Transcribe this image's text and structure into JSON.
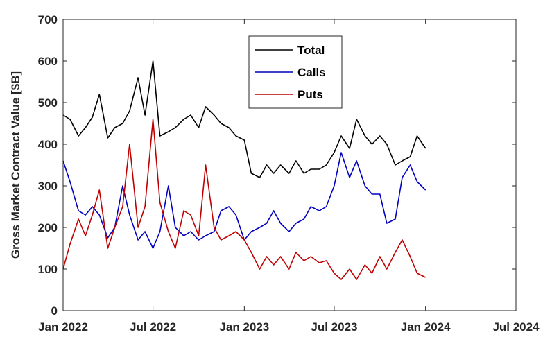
{
  "chart_data": {
    "type": "line",
    "title": "",
    "xlabel": "",
    "ylabel": "Gross Market Contract Value [$B]",
    "xlim": [
      "2022-01-01",
      "2024-07-01"
    ],
    "ylim": [
      0,
      700
    ],
    "xticks": [
      {
        "date": "2022-01-01",
        "label": "Jan 2022"
      },
      {
        "date": "2022-07-01",
        "label": "Jul 2022"
      },
      {
        "date": "2023-01-01",
        "label": "Jan 2023"
      },
      {
        "date": "2023-07-01",
        "label": "Jul 2023"
      },
      {
        "date": "2024-01-01",
        "label": "Jan 2024"
      },
      {
        "date": "2024-07-01",
        "label": "Jul 2024"
      }
    ],
    "yticks": [
      0,
      100,
      200,
      300,
      400,
      500,
      600,
      700
    ],
    "grid": false,
    "legend_position": "top-center",
    "x": [
      "2022-01-01",
      "2022-01-15",
      "2022-02-01",
      "2022-02-15",
      "2022-03-01",
      "2022-03-15",
      "2022-04-01",
      "2022-04-15",
      "2022-05-01",
      "2022-05-15",
      "2022-06-01",
      "2022-06-15",
      "2022-07-01",
      "2022-07-15",
      "2022-08-01",
      "2022-08-15",
      "2022-09-01",
      "2022-09-15",
      "2022-10-01",
      "2022-10-15",
      "2022-11-01",
      "2022-11-15",
      "2022-12-01",
      "2022-12-15",
      "2023-01-01",
      "2023-01-15",
      "2023-02-01",
      "2023-02-15",
      "2023-03-01",
      "2023-03-15",
      "2023-04-01",
      "2023-04-15",
      "2023-05-01",
      "2023-05-15",
      "2023-06-01",
      "2023-06-15",
      "2023-07-01",
      "2023-07-15",
      "2023-08-01",
      "2023-08-15",
      "2023-09-01",
      "2023-09-15",
      "2023-10-01",
      "2023-10-15",
      "2023-11-01",
      "2023-11-15",
      "2023-12-01",
      "2023-12-15",
      "2024-01-01"
    ],
    "series": [
      {
        "name": "Total",
        "color": "#000000",
        "values": [
          470,
          460,
          420,
          440,
          465,
          520,
          415,
          440,
          450,
          480,
          560,
          470,
          600,
          420,
          430,
          440,
          460,
          470,
          440,
          490,
          470,
          450,
          440,
          420,
          410,
          330,
          320,
          350,
          330,
          350,
          330,
          360,
          330,
          340,
          340,
          350,
          380,
          420,
          390,
          460,
          420,
          400,
          420,
          400,
          350,
          360,
          370,
          420,
          390
        ]
      },
      {
        "name": "Calls",
        "color": "#0000c0",
        "values": [
          360,
          310,
          240,
          230,
          250,
          230,
          175,
          200,
          300,
          230,
          170,
          190,
          150,
          190,
          300,
          200,
          180,
          190,
          170,
          180,
          190,
          240,
          250,
          230,
          170,
          190,
          200,
          210,
          240,
          210,
          190,
          210,
          220,
          250,
          240,
          250,
          300,
          380,
          320,
          360,
          300,
          280,
          280,
          210,
          220,
          320,
          350,
          310,
          290
        ]
      },
      {
        "name": "Puts",
        "color": "#c00000",
        "values": [
          100,
          160,
          220,
          180,
          230,
          290,
          150,
          200,
          250,
          400,
          200,
          250,
          460,
          260,
          190,
          150,
          240,
          230,
          180,
          350,
          200,
          170,
          180,
          190,
          170,
          140,
          100,
          130,
          110,
          130,
          100,
          140,
          120,
          130,
          115,
          120,
          90,
          75,
          100,
          75,
          110,
          90,
          130,
          100,
          140,
          170,
          130,
          90,
          80
        ]
      }
    ]
  }
}
